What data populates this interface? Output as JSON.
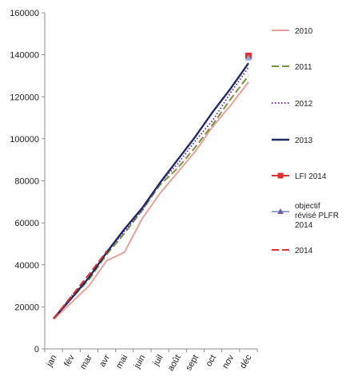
{
  "chart_data": {
    "type": "line",
    "title": "",
    "xlabel": "",
    "ylabel": "",
    "categories": [
      "jan",
      "fév",
      "mar",
      "avr",
      "mai",
      "juin",
      "juil",
      "août",
      "sept",
      "oct",
      "nov",
      "déc"
    ],
    "ylim": [
      0,
      160000
    ],
    "yticks": [
      0,
      20000,
      40000,
      60000,
      80000,
      100000,
      120000,
      140000,
      160000
    ],
    "grid": false,
    "legend_position": "right",
    "series": [
      {
        "name": "2010",
        "color": "#e8a09a",
        "style": "solid",
        "values": [
          14000,
          22000,
          30000,
          42000,
          46000,
          62000,
          74000,
          84000,
          94000,
          106000,
          116000,
          127000
        ]
      },
      {
        "name": "2011",
        "color": "#77933c",
        "style": "dashed",
        "values": [
          14500,
          24000,
          33000,
          45000,
          55000,
          66000,
          78000,
          86000,
          96000,
          107000,
          119000,
          130000
        ]
      },
      {
        "name": "2012",
        "color": "#7030a0",
        "style": "dotted",
        "values": [
          14500,
          25000,
          34000,
          46000,
          56000,
          66000,
          79000,
          88000,
          99000,
          109000,
          122000,
          134000
        ]
      },
      {
        "name": "2013",
        "color": "#1f2a6b",
        "style": "solid",
        "values": [
          14500,
          24000,
          34000,
          46000,
          57000,
          67000,
          79000,
          90000,
          101000,
          113000,
          124000,
          136000
        ]
      },
      {
        "name": "LFI  2014",
        "color": "#e03030",
        "style": "solid-square",
        "values": [
          null,
          null,
          null,
          null,
          null,
          null,
          null,
          null,
          null,
          null,
          null,
          139500
        ]
      },
      {
        "name": "objectif révisé PLFR 2014",
        "color": "#8fa8d8",
        "style": "solid-triangle",
        "values": [
          null,
          null,
          null,
          null,
          null,
          null,
          null,
          null,
          null,
          null,
          null,
          138500
        ]
      },
      {
        "name": "2014",
        "color": "#e03030",
        "style": "dashed",
        "values": [
          14500,
          25000,
          35500,
          46500,
          null,
          null,
          null,
          null,
          null,
          null,
          null,
          null
        ]
      }
    ]
  }
}
